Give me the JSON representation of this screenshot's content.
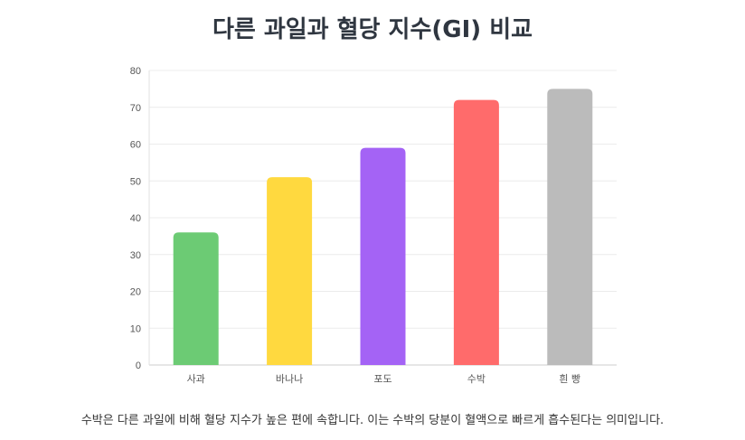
{
  "title": "다른 과일과 혈당 지수(GI) 비교",
  "caption": "수박은 다른 과일에 비해 혈당 지수가 높은 편에 속합니다. 이는 수박의 당분이 혈액으로 빠르게 흡수된다는 의미입니다.",
  "chart_data": {
    "type": "bar",
    "categories": [
      "사과",
      "바나나",
      "포도",
      "수박",
      "흰 빵"
    ],
    "values": [
      36,
      51,
      59,
      72,
      75
    ],
    "colors": [
      "#6ccb74",
      "#ffd93f",
      "#a463f5",
      "#ff6b6b",
      "#bbbbbb"
    ],
    "ylim": [
      0,
      80
    ],
    "yticks": [
      0,
      10,
      20,
      30,
      40,
      50,
      60,
      70,
      80
    ],
    "grid": true,
    "legend": "none",
    "xlabel": "",
    "ylabel": ""
  }
}
